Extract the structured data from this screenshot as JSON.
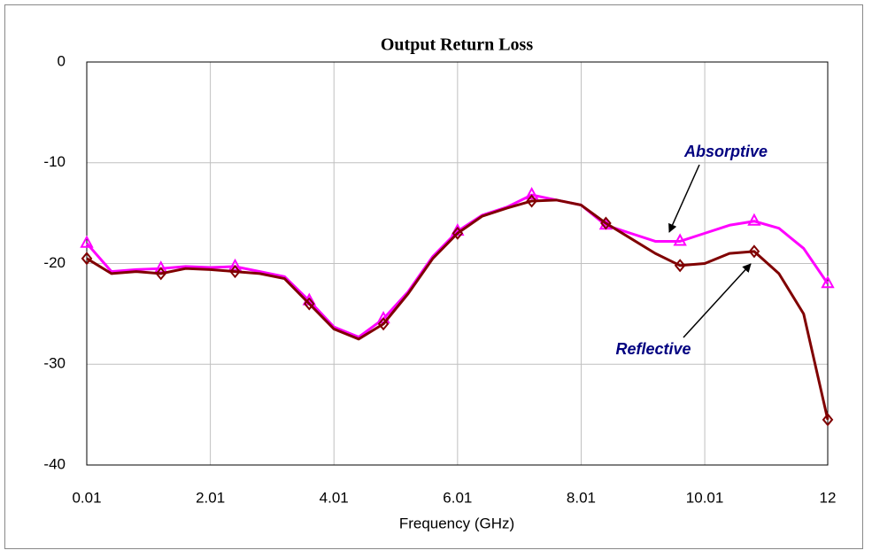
{
  "chart_data": {
    "type": "line",
    "title": "Output Return Loss",
    "xlabel": "Frequency (GHz)",
    "x": [
      0.01,
      0.41,
      0.81,
      1.21,
      1.61,
      2.01,
      2.41,
      2.81,
      3.21,
      3.61,
      4.01,
      4.41,
      4.81,
      5.21,
      5.61,
      6.01,
      6.41,
      6.81,
      7.21,
      7.61,
      8.01,
      8.41,
      8.81,
      9.21,
      9.61,
      10.01,
      10.41,
      10.81,
      11.21,
      11.61,
      12
    ],
    "series": [
      {
        "name": "Absorptive",
        "color": "#ff00ff",
        "marker": "triangle",
        "values": [
          -18,
          -20.8,
          -20.6,
          -20.5,
          -20.3,
          -20.4,
          -20.3,
          -20.8,
          -21.3,
          -23.7,
          -26.3,
          -27.3,
          -25.5,
          -22.8,
          -19.3,
          -16.8,
          -15.2,
          -14.4,
          -13.2,
          -13.7,
          -14.2,
          -16.2,
          -17,
          -17.8,
          -17.8,
          -17,
          -16.2,
          -15.8,
          -16.5,
          -18.5,
          -22
        ]
      },
      {
        "name": "Reflective",
        "color": "#800000",
        "marker": "diamond",
        "values": [
          -19.5,
          -21,
          -20.8,
          -21,
          -20.5,
          -20.6,
          -20.8,
          -21,
          -21.5,
          -24,
          -26.5,
          -27.5,
          -26,
          -23,
          -19.5,
          -17,
          -15.3,
          -14.5,
          -13.8,
          -13.7,
          -14.2,
          -16,
          -17.5,
          -19,
          -20.2,
          -20,
          -19,
          -18.8,
          -21,
          -25,
          -35.5
        ]
      }
    ],
    "xlim": [
      0.01,
      12
    ],
    "xticks": [
      {
        "value": 0.01,
        "label": "0.01"
      },
      {
        "value": 2.01,
        "label": "2.01"
      },
      {
        "value": 4.01,
        "label": "4.01"
      },
      {
        "value": 6.01,
        "label": "6.01"
      },
      {
        "value": 8.01,
        "label": "8.01"
      },
      {
        "value": 10.01,
        "label": "10.01"
      },
      12
    ],
    "ylim": [
      -40,
      0
    ],
    "yticks": [
      -40,
      -30,
      -20,
      -10,
      0
    ],
    "grid": true
  }
}
